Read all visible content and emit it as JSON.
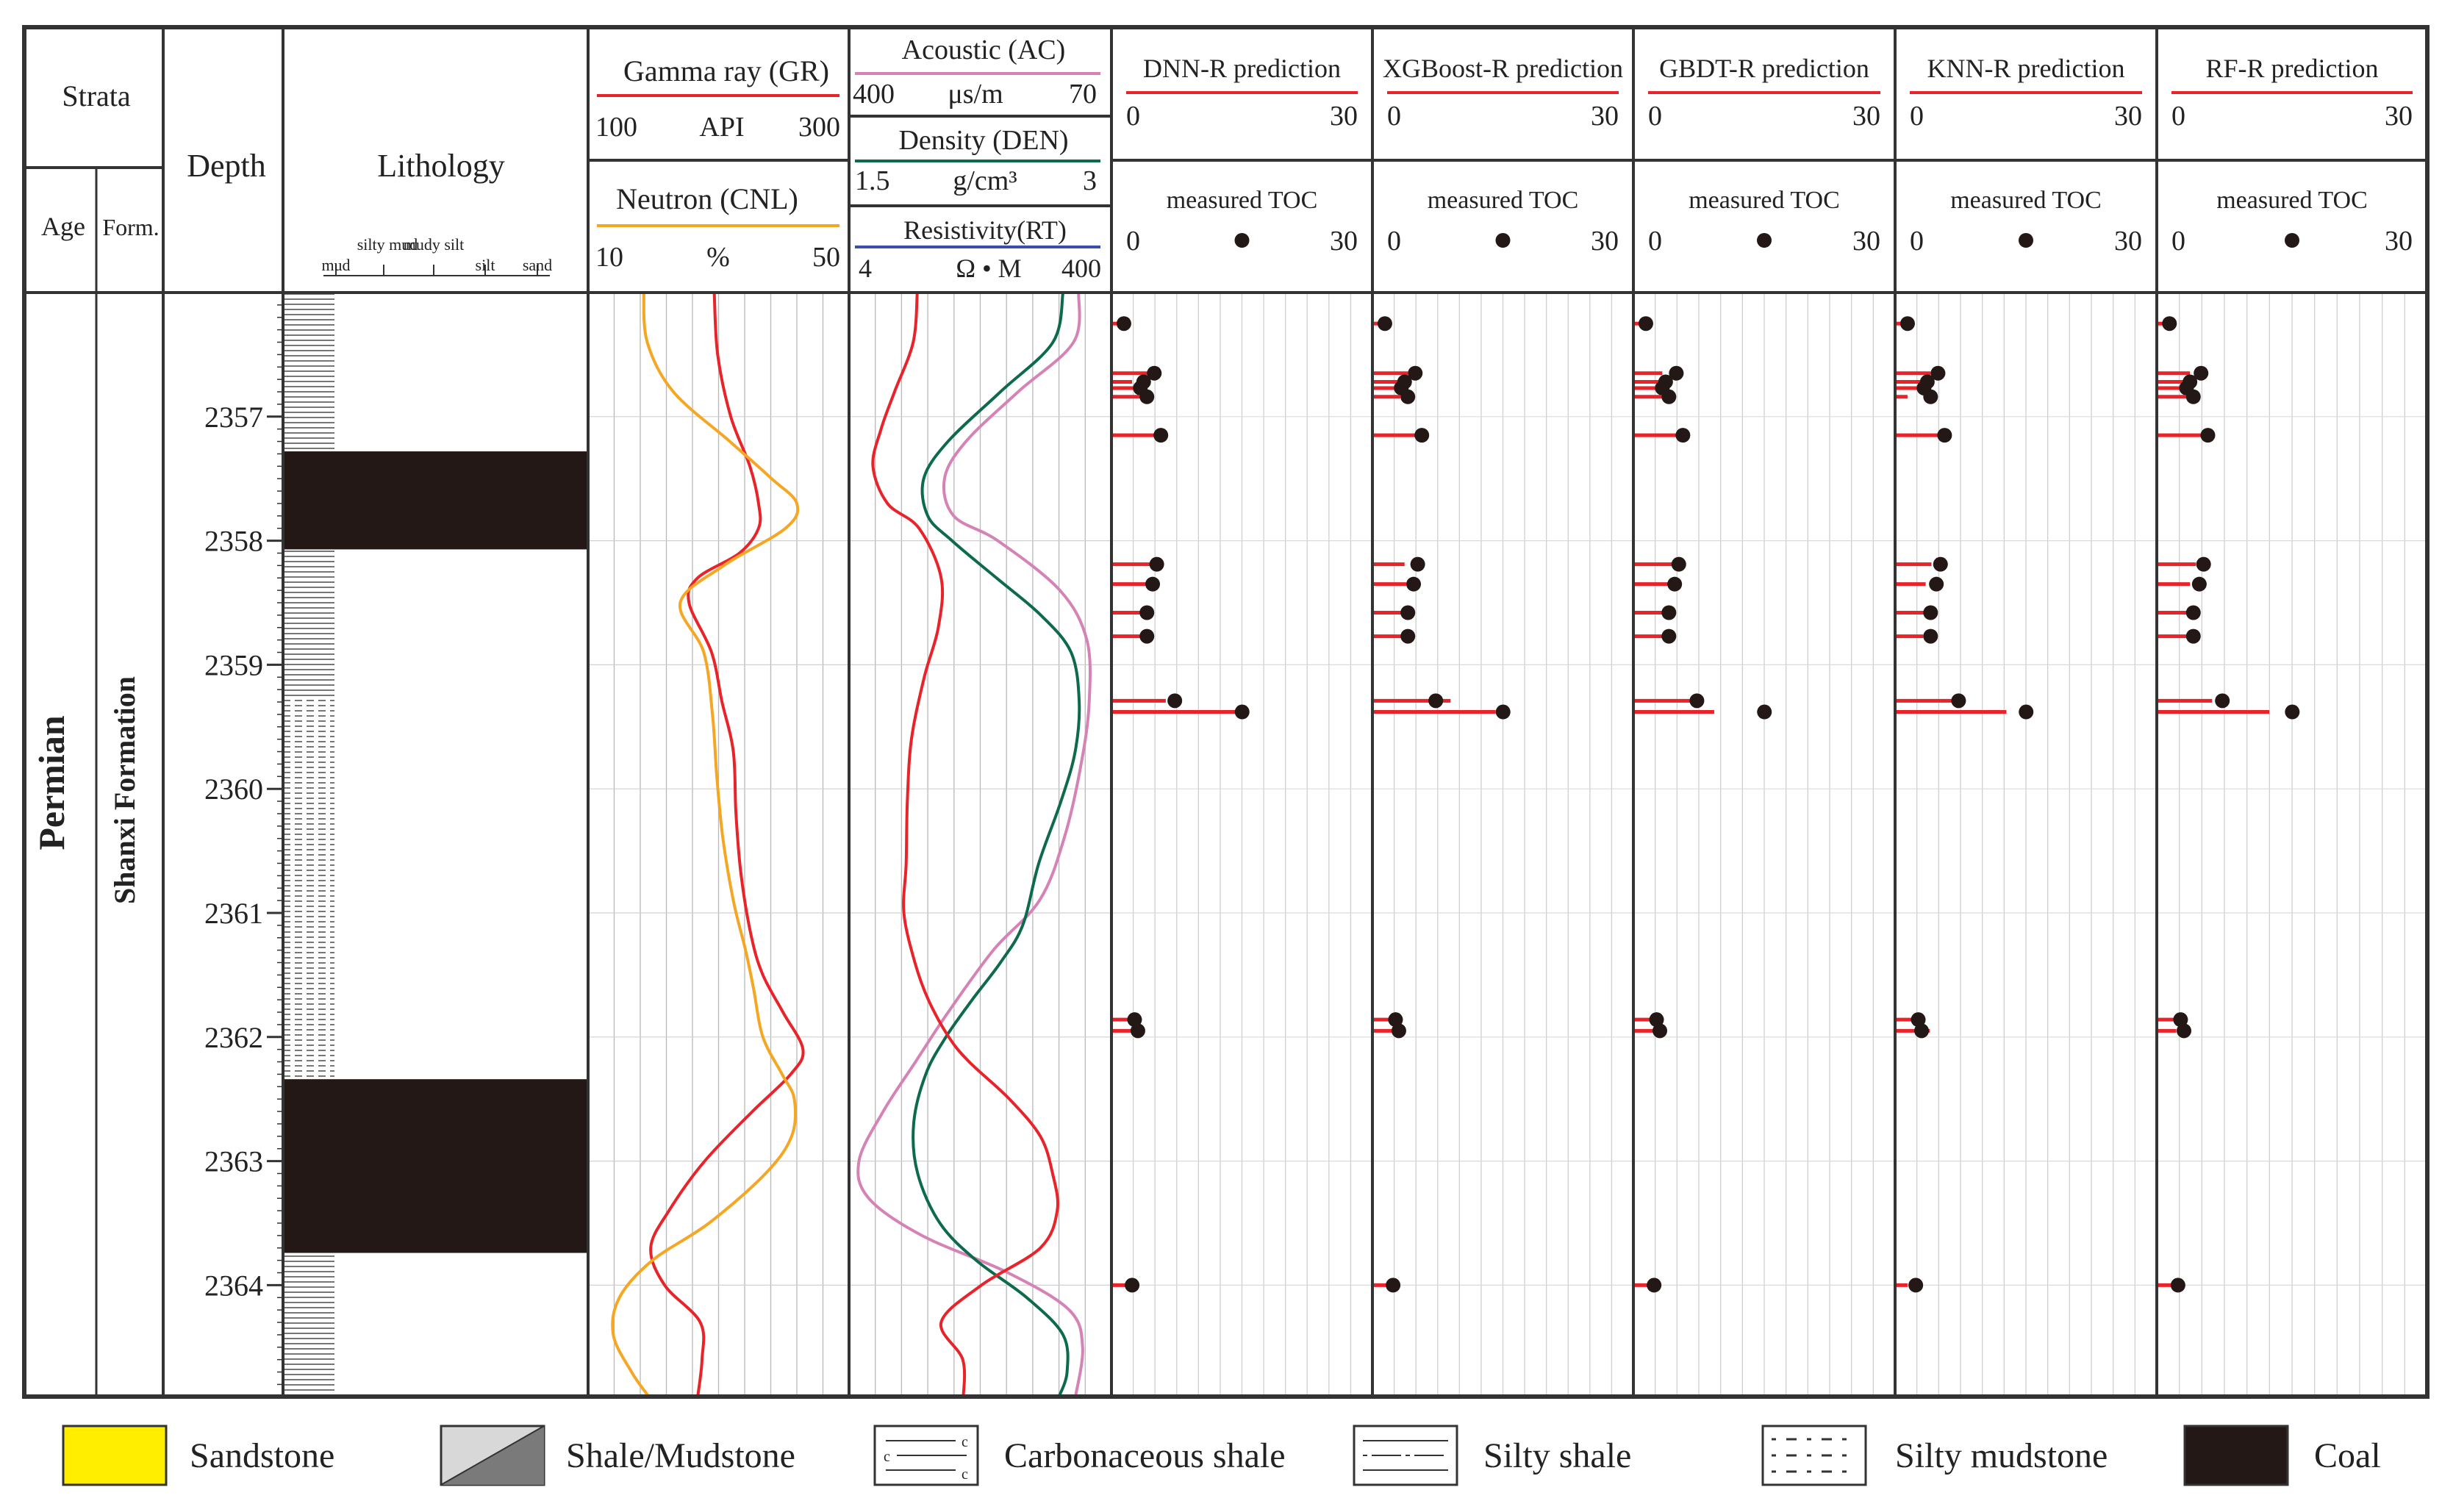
{
  "colors": {
    "gr": "#e8232a",
    "cnl": "#f5a623",
    "ac": "#d583b6",
    "den": "#0d6b4b",
    "rt": "#e8232a",
    "rt_scale_line": "#3c4fa8",
    "pred": "#e8232a",
    "measured": "#231815",
    "grid": "#b8b8b8",
    "frame": "#333333",
    "coal": "#231815",
    "sandstone": "#ffee00",
    "shale_a": "#d8d8d8",
    "shale_b": "#7a7a7a"
  },
  "header": {
    "strata": "Strata",
    "age": "Age",
    "form": "Form.",
    "depth": "Depth",
    "lithology": "Lithology",
    "lith_scale": [
      "mud",
      "silty mud",
      "mudy silt",
      "silt",
      "sand"
    ],
    "gr": {
      "title": "Gamma ray (GR)",
      "min": "100",
      "unit": "API",
      "max": "300"
    },
    "cnl": {
      "title": "Neutron (CNL)",
      "min": "10",
      "unit": "%",
      "max": "50"
    },
    "ac": {
      "title": "Acoustic (AC)",
      "min": "400",
      "unit": "μs/m",
      "max": "70"
    },
    "den": {
      "title": "Density (DEN)",
      "min": "1.5",
      "unit": "g/cm³",
      "max": "3"
    },
    "rt": {
      "title": "Resistivity(RT)",
      "min": "4",
      "unit": "Ω • M",
      "max": "400"
    },
    "measured_label": "measured TOC"
  },
  "strata": {
    "age": "Permian",
    "formation": "Shanxi Formation"
  },
  "legend": [
    {
      "key": "sandstone",
      "label": "Sandstone"
    },
    {
      "key": "shale",
      "label": "Shale/Mudstone"
    },
    {
      "key": "carb",
      "label": "Carbonaceous shale"
    },
    {
      "key": "silty_shale",
      "label": "Silty shale"
    },
    {
      "key": "silty_mud",
      "label": "Silty mudstone"
    },
    {
      "key": "coal",
      "label": "Coal"
    }
  ],
  "chart_data": {
    "type": "line",
    "depth_axis": {
      "range": [
        2356.0,
        2364.9
      ],
      "ticks": [
        2357,
        2358,
        2359,
        2360,
        2361,
        2362,
        2363,
        2364
      ]
    },
    "lithology": [
      {
        "top": 2357.28,
        "bottom": 2358.07,
        "type": "coal"
      },
      {
        "top": 2362.34,
        "bottom": 2363.74,
        "type": "coal"
      }
    ],
    "curves": {
      "gr": {
        "name": "GR",
        "depth": [
          2356.0,
          2356.5,
          2357.0,
          2357.4,
          2357.7,
          2357.9,
          2358.1,
          2358.3,
          2358.5,
          2358.9,
          2359.3,
          2359.7,
          2360.2,
          2360.7,
          2361.2,
          2361.5,
          2361.8,
          2362.1,
          2362.3,
          2362.6,
          2363.0,
          2363.4,
          2363.7,
          2364.0,
          2364.3,
          2364.6,
          2364.9
        ],
        "value": [
          19.5,
          19.9,
          21.4,
          23.6,
          24.6,
          24.6,
          22.4,
          17.6,
          16.6,
          19.2,
          20.4,
          21.7,
          22.0,
          22.6,
          23.8,
          25.1,
          27.4,
          29.7,
          28.3,
          23.9,
          18.4,
          14.3,
          12.2,
          13.8,
          17.9,
          18.1,
          17.6
        ]
      },
      "cnl": {
        "name": "CNL",
        "depth": [
          2356.0,
          2356.4,
          2356.8,
          2357.2,
          2357.5,
          2357.7,
          2357.9,
          2358.2,
          2358.5,
          2358.9,
          2359.4,
          2359.9,
          2360.4,
          2360.9,
          2361.3,
          2361.6,
          2362.0,
          2362.3,
          2362.5,
          2362.8,
          2363.1,
          2363.5,
          2363.8,
          2364.1,
          2364.4,
          2364.7,
          2364.9
        ],
        "value": [
          11.4,
          11.8,
          14.8,
          21.3,
          26.1,
          29.0,
          27.7,
          20.6,
          15.6,
          18.3,
          19.3,
          19.8,
          20.5,
          21.7,
          23.1,
          24.0,
          25.1,
          27.3,
          28.7,
          28.4,
          25.4,
          18.9,
          12.4,
          8.6,
          7.9,
          10.0,
          12.0
        ]
      },
      "ac": {
        "name": "AC",
        "depth": [
          2356.0,
          2356.4,
          2356.8,
          2357.2,
          2357.5,
          2357.8,
          2358.0,
          2358.4,
          2358.8,
          2359.3,
          2359.8,
          2360.4,
          2360.9,
          2361.3,
          2361.8,
          2362.2,
          2362.6,
          2363.0,
          2363.3,
          2363.6,
          2363.9,
          2364.2,
          2364.5,
          2364.9
        ],
        "value": [
          377.5,
          374.0,
          336.0,
          300.2,
          285.5,
          291.8,
          322.0,
          364.6,
          383.1,
          384.7,
          379.2,
          367.5,
          350.6,
          319.0,
          288.0,
          265.6,
          243.4,
          226.8,
          233.5,
          270.0,
          329.0,
          371.0,
          380.2,
          375.3
        ]
      },
      "den": {
        "name": "DEN",
        "depth": [
          2356.0,
          2356.4,
          2356.8,
          2357.2,
          2357.5,
          2357.8,
          2358.0,
          2358.3,
          2358.6,
          2358.9,
          2359.3,
          2359.7,
          2360.1,
          2360.6,
          2361.1,
          2361.4,
          2361.7,
          2362.0,
          2362.3,
          2362.7,
          2363.1,
          2363.5,
          2363.8,
          2364.1,
          2364.4,
          2364.7,
          2364.9
        ],
        "value": [
          2.56,
          2.51,
          2.25,
          1.99,
          1.87,
          1.89,
          2.01,
          2.23,
          2.45,
          2.6,
          2.64,
          2.62,
          2.55,
          2.44,
          2.36,
          2.25,
          2.11,
          1.98,
          1.88,
          1.82,
          1.84,
          1.95,
          2.13,
          2.38,
          2.56,
          2.58,
          2.54
        ]
      },
      "rt": {
        "name": "RT",
        "depth": [
          2356.0,
          2356.4,
          2356.8,
          2357.1,
          2357.4,
          2357.7,
          2357.9,
          2358.3,
          2358.7,
          2359.1,
          2359.6,
          2360.1,
          2360.6,
          2361.0,
          2361.4,
          2361.7,
          2362.0,
          2362.2,
          2362.5,
          2362.8,
          2363.1,
          2363.4,
          2363.7,
          2364.0,
          2364.3,
          2364.6,
          2364.9
        ],
        "value": [
          16.7,
          16.0,
          12.8,
          10.5,
          9.1,
          11.6,
          17.0,
          20.8,
          20.3,
          17.9,
          15.7,
          15.0,
          14.8,
          14.4,
          16.3,
          18.6,
          22.1,
          25.6,
          32.5,
          37.8,
          39.9,
          40.7,
          37.8,
          27.7,
          20.8,
          24.5,
          24.6
        ]
      }
    },
    "samples": [
      {
        "depth": 2356.25,
        "measured": 0.8
      },
      {
        "depth": 2356.65,
        "measured": 4.5
      },
      {
        "depth": 2356.72,
        "measured": 3.2
      },
      {
        "depth": 2356.77,
        "measured": 2.8
      },
      {
        "depth": 2356.84,
        "measured": 3.6
      },
      {
        "depth": 2357.15,
        "measured": 5.3
      },
      {
        "depth": 2358.19,
        "measured": 4.8
      },
      {
        "depth": 2358.35,
        "measured": 4.3
      },
      {
        "depth": 2358.58,
        "measured": 3.6
      },
      {
        "depth": 2358.77,
        "measured": 3.6
      },
      {
        "depth": 2359.29,
        "measured": 7.0
      },
      {
        "depth": 2359.38,
        "measured": 15.2
      },
      {
        "depth": 2361.86,
        "measured": 2.1
      },
      {
        "depth": 2361.95,
        "measured": 2.5
      },
      {
        "depth": 2364.0,
        "measured": 1.8
      }
    ],
    "models": [
      {
        "name": "DNN-R prediction",
        "min": "0",
        "max": "30",
        "pred": [
          0.7,
          3.9,
          1.8,
          2.9,
          2.8,
          5.2,
          4.5,
          4.1,
          3.0,
          3.4,
          5.9,
          14.8,
          1.8,
          2.3,
          1.1
        ]
      },
      {
        "name": "XGBoost-R prediction",
        "min": "0",
        "max": "30",
        "pred": [
          0.7,
          3.6,
          2.9,
          2.8,
          2.7,
          4.7,
          3.2,
          3.4,
          3.4,
          3.1,
          8.8,
          14.3,
          1.9,
          2.0,
          1.1
        ]
      },
      {
        "name": "GBDT-R prediction",
        "min": "0",
        "max": "30",
        "pred": [
          0.5,
          2.8,
          2.6,
          3.2,
          3.5,
          5.0,
          4.1,
          4.1,
          3.4,
          3.5,
          6.9,
          9.1,
          1.6,
          1.8,
          1.1
        ]
      },
      {
        "name": "KNN-R prediction",
        "min": "0",
        "max": "30",
        "pred": [
          0.4,
          3.6,
          2.8,
          2.9,
          0.8,
          5.5,
          3.7,
          3.0,
          3.4,
          2.7,
          6.5,
          12.8,
          1.9,
          3.5,
          0.8
        ]
      },
      {
        "name": "RF-R prediction",
        "min": "0",
        "max": "30",
        "pred": [
          0.3,
          3.2,
          2.8,
          2.4,
          2.9,
          5.5,
          3.9,
          3.2,
          2.9,
          3.0,
          5.8,
          12.5,
          2.0,
          1.6,
          2.2
        ]
      }
    ]
  }
}
